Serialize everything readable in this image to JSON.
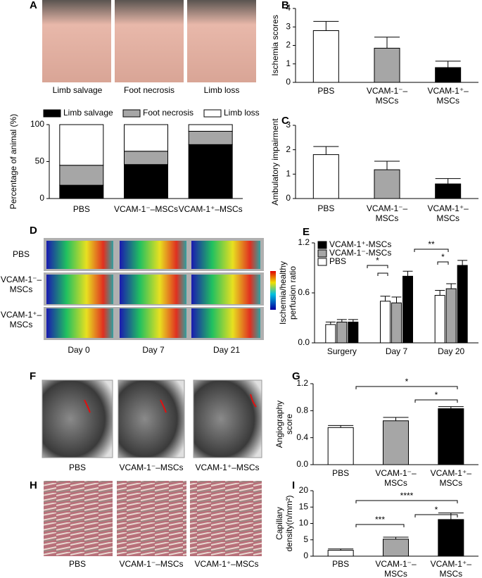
{
  "panel_labels": [
    "A",
    "B",
    "C",
    "D",
    "E",
    "F",
    "G",
    "H",
    "I"
  ],
  "images": {
    "a_labels": [
      "Limb salvage",
      "Foot necrosis",
      "Limb loss"
    ],
    "d_rows": [
      [
        "PBS"
      ],
      [
        "VCAM-1⁻–",
        "MSCs"
      ],
      [
        "VCAM-1⁺–",
        "MSCs"
      ]
    ],
    "d_cols": [
      "Day 0",
      "Day 7",
      "Day 21"
    ],
    "f_labels": [
      "PBS",
      "VCAM-1⁻–MSCs",
      "VCAM-1⁺–MSCs"
    ],
    "h_labels": [
      "PBS",
      "VCAM-1⁻–MSCs",
      "VCAM-1⁺–MSCs"
    ]
  },
  "chart_data": [
    {
      "type": "stacked_bar",
      "ylabel": [
        "Percentage of animal (%)"
      ],
      "categories": [
        [
          "PBS"
        ],
        [
          "VCAM-1⁻–MSCs"
        ],
        [
          "VCAM-1⁺–MSCs"
        ]
      ],
      "series": [
        {
          "name": "Limb salvage",
          "color": "#000000",
          "values": [
            18,
            46,
            73
          ]
        },
        {
          "name": "Foot necrosis",
          "color": "#a6a6a6",
          "values": [
            27,
            18,
            18
          ]
        },
        {
          "name": "Limb loss",
          "color": "#ffffff",
          "values": [
            55,
            36,
            9
          ]
        }
      ],
      "ylim": [
        0,
        100
      ],
      "yticks": [
        0,
        50,
        100
      ]
    },
    {
      "type": "bar",
      "ylabel": [
        "Ischemia scores"
      ],
      "categories": [
        [
          "PBS"
        ],
        [
          "VCAM-1⁻–",
          "MSCs"
        ],
        [
          "VCAM-1⁺–",
          "MSCs"
        ]
      ],
      "colors": [
        "#ffffff",
        "#a6a6a6",
        "#000000"
      ],
      "values": [
        2.8,
        1.85,
        0.8
      ],
      "errors": [
        0.5,
        0.6,
        0.35
      ],
      "ylim": [
        0,
        4
      ],
      "yticks": [
        0,
        1,
        2,
        3,
        4
      ]
    },
    {
      "type": "bar",
      "ylabel": [
        "Ambulatory impairment"
      ],
      "categories": [
        [
          "PBS"
        ],
        [
          "VCAM-1⁻–",
          "MSCs"
        ],
        [
          "VCAM-1⁺–",
          "MSCs"
        ]
      ],
      "colors": [
        "#ffffff",
        "#a6a6a6",
        "#000000"
      ],
      "values": [
        1.8,
        1.18,
        0.6
      ],
      "errors": [
        0.33,
        0.35,
        0.22
      ],
      "ylim": [
        0,
        3
      ],
      "yticks": [
        0,
        1,
        2,
        3
      ]
    },
    {
      "type": "grouped_bar",
      "ylabel": [
        "Ischemia/healthy",
        "perfusion ratio"
      ],
      "categories": [
        [
          "Surgery"
        ],
        [
          "Day 7"
        ],
        [
          "Day 20"
        ]
      ],
      "series": [
        {
          "name": "VCAM-1⁺-MSCs",
          "color": "#000000",
          "values": [
            0.25,
            0.8,
            0.93
          ],
          "errors": [
            0.03,
            0.06,
            0.06
          ]
        },
        {
          "name": "VCAM-1⁻-MSCs",
          "color": "#a6a6a6",
          "values": [
            0.25,
            0.48,
            0.65
          ],
          "errors": [
            0.03,
            0.07,
            0.06
          ]
        },
        {
          "name": "PBS",
          "color": "#ffffff",
          "values": [
            0.22,
            0.5,
            0.57
          ],
          "errors": [
            0.03,
            0.06,
            0.06
          ]
        }
      ],
      "annotations": [
        "*",
        "**",
        "*"
      ],
      "ylim": [
        0,
        1.2
      ],
      "yticks": [
        {
          "value": 0,
          "label": "0.0"
        },
        0.6,
        1.2
      ]
    },
    {
      "type": "bar",
      "ylabel": [
        "Angiography",
        "score"
      ],
      "categories": [
        [
          "PBS"
        ],
        [
          "VCAM-1⁻–",
          "MSCs"
        ],
        [
          "VCAM-1⁺–",
          "MSCs"
        ]
      ],
      "colors": [
        "#ffffff",
        "#a6a6a6",
        "#000000"
      ],
      "values": [
        0.55,
        0.65,
        0.83
      ],
      "errors": [
        0.03,
        0.05,
        0.03
      ],
      "annotations": [
        "*",
        "*"
      ],
      "ylim": [
        0,
        1.2
      ],
      "yticks": [
        {
          "value": 0,
          "label": "0.0"
        },
        0.4,
        0.8,
        1.2
      ]
    },
    {
      "type": "bar",
      "ylabel": [
        "Capillary",
        "density(n/mm²)"
      ],
      "categories": [
        [
          "PBS"
        ],
        [
          "VCAM-1⁻–",
          "MSCs"
        ],
        [
          "VCAM-1⁺–",
          "MSCs"
        ]
      ],
      "colors": [
        "#ffffff",
        "#a6a6a6",
        "#000000"
      ],
      "values": [
        1.8,
        5.2,
        11.2
      ],
      "errors": [
        0.4,
        0.6,
        2
      ],
      "annotations": [
        "****",
        "*",
        "***"
      ],
      "ylim": [
        0,
        20
      ],
      "yticks": [
        0,
        5,
        10,
        15,
        20
      ]
    }
  ]
}
